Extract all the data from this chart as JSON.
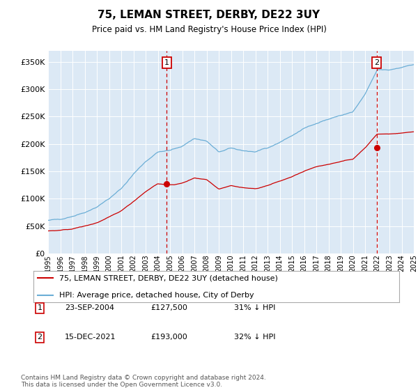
{
  "title": "75, LEMAN STREET, DERBY, DE22 3UY",
  "subtitle": "Price paid vs. HM Land Registry's House Price Index (HPI)",
  "background_color": "#dce9f5",
  "hpi_color": "#6baed6",
  "price_color": "#cc0000",
  "vline_color": "#cc0000",
  "ylim": [
    0,
    370000
  ],
  "yticks": [
    0,
    50000,
    100000,
    150000,
    200000,
    250000,
    300000,
    350000
  ],
  "legend_label_price": "75, LEMAN STREET, DERBY, DE22 3UY (detached house)",
  "legend_label_hpi": "HPI: Average price, detached house, City of Derby",
  "annotation1_label": "1",
  "annotation1_date": "23-SEP-2004",
  "annotation1_price": "£127,500",
  "annotation1_pct": "31% ↓ HPI",
  "annotation1_year": 2004.73,
  "annotation1_value": 127500,
  "annotation2_label": "2",
  "annotation2_date": "15-DEC-2021",
  "annotation2_price": "£193,000",
  "annotation2_pct": "32% ↓ HPI",
  "annotation2_year": 2021.96,
  "annotation2_value": 193000,
  "footer": "Contains HM Land Registry data © Crown copyright and database right 2024.\nThis data is licensed under the Open Government Licence v3.0.",
  "xstart": 1995,
  "xend": 2025,
  "hpi_base": {
    "1995": 60000,
    "1996": 63000,
    "1997": 68000,
    "1998": 75000,
    "1999": 85000,
    "2000": 100000,
    "2001": 118000,
    "2002": 145000,
    "2003": 168000,
    "2004": 185000,
    "2005": 188000,
    "2006": 196000,
    "2007": 210000,
    "2008": 205000,
    "2009": 185000,
    "2010": 192000,
    "2011": 188000,
    "2012": 185000,
    "2013": 192000,
    "2014": 203000,
    "2015": 215000,
    "2016": 228000,
    "2017": 238000,
    "2018": 245000,
    "2019": 252000,
    "2020": 258000,
    "2021": 290000,
    "2022": 335000,
    "2023": 335000,
    "2024": 340000,
    "2025": 345000
  },
  "price_base": {
    "1995": 41000,
    "1996": 42000,
    "1997": 45000,
    "1998": 50000,
    "1999": 56000,
    "2000": 66000,
    "2001": 78000,
    "2002": 95000,
    "2003": 113000,
    "2004": 127500,
    "2005": 125000,
    "2006": 128000,
    "2007": 138000,
    "2008": 135000,
    "2009": 118000,
    "2010": 124000,
    "2011": 120000,
    "2012": 118000,
    "2013": 124000,
    "2014": 132000,
    "2015": 140000,
    "2016": 150000,
    "2017": 158000,
    "2018": 163000,
    "2019": 168000,
    "2020": 172000,
    "2021": 193000,
    "2022": 218000,
    "2023": 218000,
    "2024": 220000,
    "2025": 222000
  }
}
